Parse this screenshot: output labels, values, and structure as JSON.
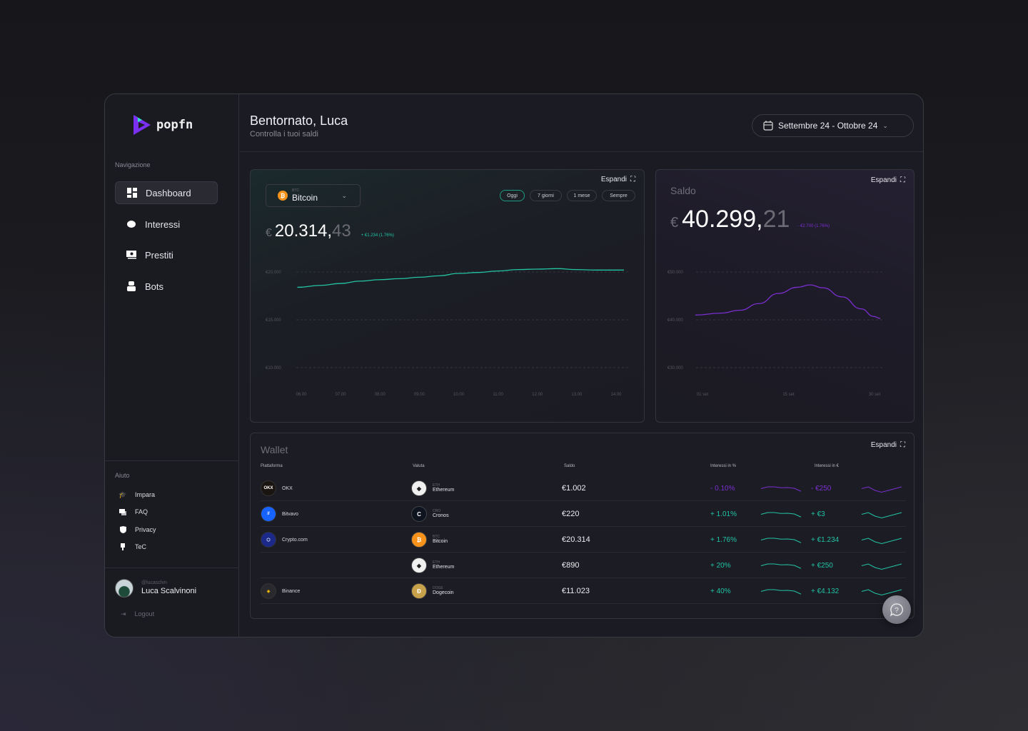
{
  "brand": {
    "name": "popfn"
  },
  "sidebar": {
    "nav_title": "Navigazione",
    "items": [
      {
        "label": "Dashboard",
        "icon": "dashboard-icon"
      },
      {
        "label": "Interessi",
        "icon": "piggy-bank-icon"
      },
      {
        "label": "Prestiti",
        "icon": "money-icon"
      },
      {
        "label": "Bots",
        "icon": "robot-icon"
      }
    ],
    "help_title": "Aiuto",
    "help_items": [
      {
        "label": "Impara",
        "icon": "graduation-cap-icon"
      },
      {
        "label": "FAQ",
        "icon": "chat-icon"
      },
      {
        "label": "Privacy",
        "icon": "shield-icon"
      },
      {
        "label": "TeC",
        "icon": "award-icon"
      }
    ],
    "user": {
      "handle": "@lucasclvn",
      "name": "Luca Scalvinoni"
    },
    "logout": "Logout"
  },
  "header": {
    "title": "Bentornato, Luca",
    "subtitle": "Controlla i  tuoi saldi",
    "date_range": "Settembre 24 - Ottobre 24"
  },
  "coin_card": {
    "expand": "Espandi",
    "selected_ticker": "BTC",
    "selected_name": "Bitcoin",
    "ranges": [
      "Oggi",
      "7 giorni",
      "1 mese",
      "Sempre"
    ],
    "active_range": "Oggi",
    "currency": "€",
    "value_int": "20.314,",
    "value_dec": "43",
    "change": "+ €1.234 (1.76%)"
  },
  "saldo_card": {
    "title": "Saldo",
    "expand": "Espandi",
    "currency": "€",
    "value_int": "40.299,",
    "value_dec": "21",
    "change": "- €2.700 (1.76%)"
  },
  "wallet": {
    "title": "Wallet",
    "expand": "Espandi",
    "columns": [
      "Piattaforma",
      "Valuta",
      "Saldo",
      "Interessi in %",
      "Interessi in €"
    ],
    "rows": [
      {
        "platform": "OKX",
        "ticker": "ETH",
        "coin": "Ethereum",
        "balance": "€1.002",
        "pct": "- 0.10%",
        "eur": "- €250",
        "trend": "neg"
      },
      {
        "platform": "Bitvavo",
        "ticker": "CRO",
        "coin": "Cronos",
        "balance": "€220",
        "pct": "+ 1.01%",
        "eur": "+ €3",
        "trend": "pos"
      },
      {
        "platform": "Crypto.com",
        "ticker": "BTC",
        "coin": "Bitcoin",
        "balance": "€20.314",
        "pct": "+ 1.76%",
        "eur": "+ €1.234",
        "trend": "pos"
      },
      {
        "platform": "",
        "ticker": "ETH",
        "coin": "Ethereum",
        "balance": "€890",
        "pct": "+ 20%",
        "eur": "+ €250",
        "trend": "pos"
      },
      {
        "platform": "Binance",
        "ticker": "DOGE",
        "coin": "Dogecoin",
        "balance": "€11.023",
        "pct": "+ 40%",
        "eur": "+ €4.132",
        "trend": "pos"
      }
    ],
    "spark_pct": [
      3,
      4,
      4,
      3.5,
      3.6,
      3.2,
      1.5
    ],
    "spark_eur": [
      3,
      4,
      2,
      1,
      2,
      3,
      4
    ]
  },
  "colors": {
    "accent_green": "#22c4a4",
    "accent_purple": "#7a2fd0"
  },
  "chart_data": [
    {
      "type": "line",
      "title": "Bitcoin",
      "x": [
        5.9,
        6.5,
        7,
        7.5,
        8,
        8.5,
        9,
        9.5,
        10,
        10.5,
        11,
        11.5,
        12,
        12.5,
        13,
        13.5,
        14.2
      ],
      "values": [
        18400,
        18600,
        18800,
        19050,
        19200,
        19300,
        19450,
        19600,
        19850,
        19950,
        20100,
        20250,
        20300,
        20350,
        20250,
        20200,
        20200
      ],
      "xticks": [
        "06.00",
        "07.00",
        "08.00",
        "09.00",
        "10.00",
        "11.00",
        "12.00",
        "13.00",
        "14.00"
      ],
      "yticks": [
        "€20.000",
        "€15.000",
        "€10.000"
      ],
      "ylim": [
        10000,
        20000
      ],
      "grid": true
    },
    {
      "type": "line",
      "title": "Saldo",
      "x": [
        1,
        5,
        8,
        11,
        14,
        17,
        19,
        21,
        24,
        27,
        29,
        30
      ],
      "values": [
        41000,
        41400,
        42000,
        43400,
        45500,
        46800,
        47300,
        46700,
        44800,
        42300,
        40700,
        40300
      ],
      "xticks": [
        "01 set",
        "15 set",
        "30 set"
      ],
      "yticks": [
        "€50.000",
        "€40.000",
        "€30.000"
      ],
      "ylim": [
        30000,
        50000
      ],
      "grid": true
    }
  ]
}
